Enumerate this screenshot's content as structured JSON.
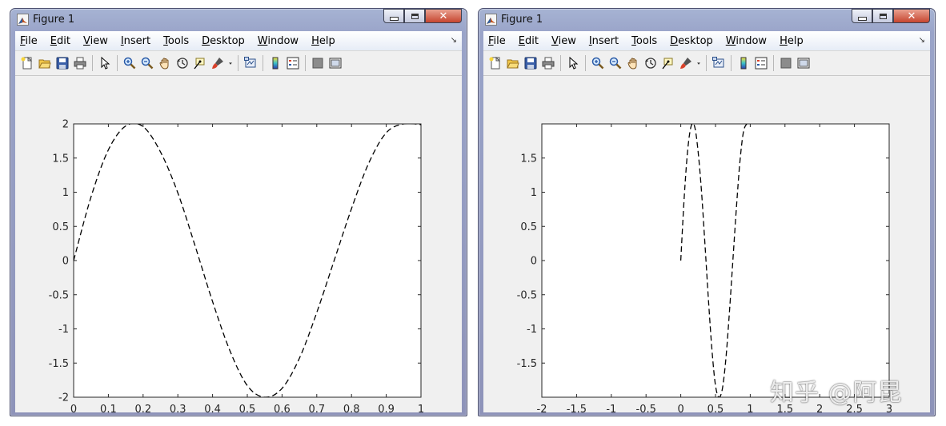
{
  "windows": [
    {
      "id": "left",
      "title": "Figure 1",
      "menu": [
        {
          "label": "File",
          "mnemonic": "F",
          "rest": "ile"
        },
        {
          "label": "Edit",
          "mnemonic": "E",
          "rest": "dit"
        },
        {
          "label": "View",
          "mnemonic": "V",
          "rest": "iew"
        },
        {
          "label": "Insert",
          "mnemonic": "I",
          "rest": "nsert"
        },
        {
          "label": "Tools",
          "mnemonic": "T",
          "rest": "ools"
        },
        {
          "label": "Desktop",
          "mnemonic": "D",
          "rest": "esktop"
        },
        {
          "label": "Window",
          "mnemonic": "W",
          "rest": "indow"
        },
        {
          "label": "Help",
          "mnemonic": "H",
          "rest": "elp"
        }
      ],
      "toolbar_icons": [
        "new-figure-icon",
        "open-file-icon",
        "save-icon",
        "print-icon",
        "|",
        "edit-plot-arrow-icon",
        "|",
        "zoom-in-icon",
        "zoom-out-icon",
        "pan-hand-icon",
        "rotate-3d-icon",
        "data-cursor-icon",
        "brush-icon",
        "brush-dropdown-icon",
        "|",
        "link-plot-icon",
        "|",
        "colorbar-icon",
        "legend-icon",
        "|",
        "hide-plot-tools-icon",
        "show-plot-tools-icon"
      ]
    },
    {
      "id": "right",
      "title": "Figure 1",
      "menu": [
        {
          "label": "File",
          "mnemonic": "F",
          "rest": "ile"
        },
        {
          "label": "Edit",
          "mnemonic": "E",
          "rest": "dit"
        },
        {
          "label": "View",
          "mnemonic": "V",
          "rest": "iew"
        },
        {
          "label": "Insert",
          "mnemonic": "I",
          "rest": "nsert"
        },
        {
          "label": "Tools",
          "mnemonic": "T",
          "rest": "ools"
        },
        {
          "label": "Desktop",
          "mnemonic": "D",
          "rest": "esktop"
        },
        {
          "label": "Window",
          "mnemonic": "W",
          "rest": "indow"
        },
        {
          "label": "Help",
          "mnemonic": "H",
          "rest": "elp"
        }
      ],
      "toolbar_icons": [
        "new-figure-icon",
        "open-file-icon",
        "save-icon",
        "print-icon",
        "|",
        "edit-plot-arrow-icon",
        "|",
        "zoom-in-icon",
        "zoom-out-icon",
        "pan-hand-icon",
        "rotate-3d-icon",
        "data-cursor-icon",
        "brush-icon",
        "brush-dropdown-icon",
        "|",
        "link-plot-icon",
        "|",
        "colorbar-icon",
        "legend-icon",
        "|",
        "hide-plot-tools-icon",
        "show-plot-tools-icon"
      ]
    }
  ],
  "chart_data": [
    {
      "type": "line",
      "title": "",
      "xlabel": "",
      "ylabel": "",
      "xlim": [
        0,
        1
      ],
      "ylim": [
        -2,
        2
      ],
      "xticks": [
        "0",
        "0.1",
        "0.2",
        "0.3",
        "0.4",
        "0.5",
        "0.6",
        "0.7",
        "0.8",
        "0.9",
        "1"
      ],
      "xtick_values": [
        0,
        0.1,
        0.2,
        0.3,
        0.4,
        0.5,
        0.6,
        0.7,
        0.8,
        0.9,
        1
      ],
      "yticks": [
        "2",
        "1.5",
        "1",
        "0.5",
        "0",
        "-0.5",
        "-1",
        "-1.5",
        "-2"
      ],
      "ytick_values": [
        2,
        1.5,
        1,
        0.5,
        0,
        -0.5,
        -1,
        -1.5,
        -2
      ],
      "grid": false,
      "line_style": "dashed",
      "line_color": "#000000",
      "series": [
        {
          "x": [
            0,
            0.05,
            0.1,
            0.15,
            0.2,
            0.25,
            0.3,
            0.35,
            0.4,
            0.45,
            0.5,
            0.55,
            0.6,
            0.65,
            0.7,
            0.75,
            0.8,
            0.85,
            0.9,
            0.95,
            1.0
          ],
          "y": [
            0,
            0.93,
            1.62,
            1.97,
            1.96,
            1.59,
            0.99,
            0.21,
            -0.6,
            -1.32,
            -1.83,
            -2.0,
            -1.87,
            -1.43,
            -0.76,
            0.0,
            0.76,
            1.43,
            1.87,
            2.0,
            1.99
          ]
        }
      ]
    },
    {
      "type": "line",
      "title": "",
      "xlabel": "",
      "ylabel": "",
      "xlim": [
        -2,
        3
      ],
      "ylim": [
        -2,
        2
      ],
      "xticks": [
        "-2",
        "-1.5",
        "-1",
        "-0.5",
        "0",
        "0.5",
        "1",
        "1.5",
        "2",
        "2.5",
        "3"
      ],
      "xtick_values": [
        -2,
        -1.5,
        -1,
        -0.5,
        0,
        0.5,
        1,
        1.5,
        2,
        2.5,
        3
      ],
      "yticks": [
        "1.5",
        "1",
        "0.5",
        "0",
        "-0.5",
        "-1",
        "-1.5"
      ],
      "ytick_values": [
        1.5,
        1,
        0.5,
        0,
        -0.5,
        -1,
        -1.5
      ],
      "grid": false,
      "line_style": "dashed",
      "line_color": "#000000",
      "series": [
        {
          "x": [
            0,
            0.05,
            0.1,
            0.15,
            0.2,
            0.25,
            0.3,
            0.35,
            0.4,
            0.45,
            0.5,
            0.55,
            0.6,
            0.65,
            0.7,
            0.75,
            0.8,
            0.85,
            0.9,
            0.95,
            1.0
          ],
          "y": [
            0,
            0.93,
            1.62,
            1.97,
            1.96,
            1.59,
            0.99,
            0.21,
            -0.6,
            -1.32,
            -1.83,
            -2.0,
            -1.87,
            -1.43,
            -0.76,
            0.0,
            0.76,
            1.43,
            1.87,
            2.0,
            1.99
          ]
        }
      ]
    }
  ],
  "watermark": "知乎 @阿昆"
}
